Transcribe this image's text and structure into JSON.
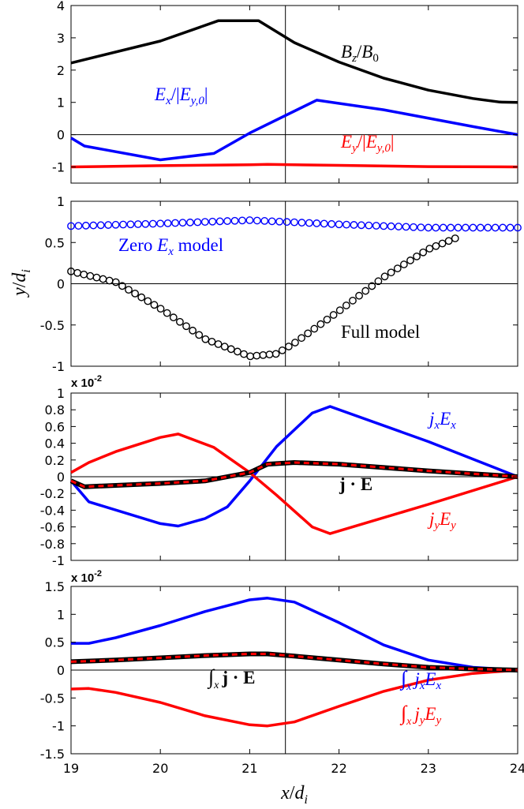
{
  "chart_data": [
    {
      "type": "line",
      "panel": "a",
      "xlim": [
        19,
        24
      ],
      "ylim": [
        -1.5,
        4
      ],
      "yticks": [
        4,
        3,
        2,
        1,
        0,
        -1
      ],
      "ytick_labels": [
        "4",
        "3",
        "2",
        "1",
        "0",
        "-1"
      ],
      "grid": false,
      "series": [
        {
          "name": "Bz/B0",
          "color": "#000000",
          "x": [
            19,
            20.0,
            20.65,
            21.1,
            21.5,
            22.0,
            22.5,
            23.0,
            23.5,
            23.8,
            24.0
          ],
          "y": [
            2.22,
            2.9,
            3.53,
            3.53,
            2.85,
            2.25,
            1.75,
            1.38,
            1.12,
            1.01,
            1.0
          ]
        },
        {
          "name": "Ex/|Ey,0|",
          "color": "#0000ff",
          "x": [
            19,
            19.15,
            20.0,
            20.6,
            21.0,
            21.75,
            22.5,
            23.5,
            24.0
          ],
          "y": [
            -0.1,
            -0.35,
            -0.78,
            -0.58,
            0.05,
            1.07,
            0.77,
            0.25,
            0.0
          ]
        },
        {
          "name": "Ey/|Ey,0|",
          "color": "#ff0000",
          "x": [
            19,
            20.0,
            21.0,
            21.2,
            22.0,
            23.0,
            24.0
          ],
          "y": [
            -1.0,
            -0.96,
            -0.93,
            -0.92,
            -0.95,
            -0.99,
            -1.0
          ]
        }
      ],
      "annotations": [
        {
          "id": "bz",
          "color": "#000000",
          "base": "B",
          "sub": "z",
          "div": "/",
          "base2": "B",
          "sub2": "0"
        },
        {
          "id": "ex",
          "color": "#0000ff",
          "base": "E",
          "sub": "x",
          "rest": "/|",
          "base2": "E",
          "sub2": "y,0",
          "tail": "|"
        },
        {
          "id": "ey",
          "color": "#ff0000",
          "base": "E",
          "sub": "y",
          "rest": "/|",
          "base2": "E",
          "sub2": "y,0",
          "tail": "|"
        }
      ]
    },
    {
      "type": "scatter",
      "panel": "b",
      "xlim": [
        19,
        24
      ],
      "ylim": [
        -1,
        1
      ],
      "yticks": [
        1,
        0.5,
        0,
        -0.5,
        -1
      ],
      "ytick_labels": [
        "1",
        "0.5",
        "0",
        "-0.5",
        "-1"
      ],
      "ylabel": {
        "base": "y",
        "div": "/",
        "base2": "d",
        "sub2": "i"
      },
      "grid": false,
      "series": [
        {
          "name": "Zero Ex model",
          "color": "#0000ff",
          "x": [
            19,
            20.0,
            21.0,
            22.0,
            23.0,
            24.0
          ],
          "y": [
            0.7,
            0.73,
            0.77,
            0.72,
            0.68,
            0.68
          ]
        },
        {
          "name": "Full model",
          "color": "#000000",
          "x": [
            19,
            19.5,
            20.0,
            20.5,
            21.0,
            21.3,
            21.5,
            22.0,
            22.5,
            23.0,
            23.3
          ],
          "y": [
            0.15,
            0.02,
            -0.3,
            -0.67,
            -0.88,
            -0.85,
            -0.72,
            -0.33,
            0.08,
            0.42,
            0.55
          ]
        }
      ],
      "annotations": [
        {
          "id": "zero",
          "color": "#0000ff",
          "pre": "Zero ",
          "base": "E",
          "sub": "x",
          "post": " model"
        },
        {
          "id": "full",
          "color": "#000000",
          "text": "Full model"
        }
      ]
    },
    {
      "type": "line",
      "panel": "c",
      "xlim": [
        19,
        24
      ],
      "ylim": [
        -1,
        1
      ],
      "multiplier": "x 10",
      "multiplier_exp": "-2",
      "yticks": [
        1,
        0.8,
        0.6,
        0.4,
        0.2,
        0,
        -0.2,
        -0.4,
        -0.6,
        -0.8,
        -1
      ],
      "ytick_labels": [
        "1",
        "0.8",
        "0.6",
        "0.4",
        "0.2",
        "0",
        "-0.2",
        "-0.4",
        "-0.6",
        "-0.8",
        "-1"
      ],
      "grid": false,
      "series": [
        {
          "name": "jxEx",
          "color": "#0000ff",
          "x": [
            19,
            19.2,
            20.0,
            20.2,
            20.5,
            20.75,
            21.0,
            21.3,
            21.7,
            21.9,
            23.0,
            24.0
          ],
          "y": [
            -0.05,
            -0.3,
            -0.56,
            -0.59,
            -0.5,
            -0.36,
            -0.05,
            0.36,
            0.76,
            0.84,
            0.42,
            0.0
          ]
        },
        {
          "name": "jyEy",
          "color": "#ff0000",
          "x": [
            19,
            19.2,
            19.5,
            20.0,
            20.2,
            20.6,
            21.0,
            21.3,
            21.7,
            21.9,
            23.0,
            24.0
          ],
          "y": [
            0.05,
            0.17,
            0.3,
            0.47,
            0.51,
            0.35,
            0.05,
            -0.22,
            -0.6,
            -0.68,
            -0.33,
            0.0
          ]
        },
        {
          "name": "j·E (full)",
          "color": "#000000",
          "x": [
            19,
            19.15,
            20.0,
            20.5,
            21.0,
            21.2,
            21.5,
            22.0,
            23.0,
            24.0
          ],
          "y": [
            -0.05,
            -0.12,
            -0.08,
            -0.05,
            0.05,
            0.15,
            0.17,
            0.15,
            0.07,
            0.0
          ]
        },
        {
          "name": "j·E (sum)",
          "color": "#ff0000",
          "dashed": true,
          "x": [
            19,
            19.15,
            20.0,
            20.5,
            21.0,
            21.2,
            21.5,
            22.0,
            23.0,
            24.0
          ],
          "y": [
            -0.05,
            -0.12,
            -0.08,
            -0.05,
            0.05,
            0.15,
            0.17,
            0.15,
            0.07,
            0.0
          ]
        }
      ],
      "annotations": [
        {
          "id": "jxex",
          "color": "#0000ff",
          "base": "j",
          "sub": "x",
          "base2": "E",
          "sub2": "x"
        },
        {
          "id": "jyey",
          "color": "#ff0000",
          "base": "j",
          "sub": "y",
          "base2": "E",
          "sub2": "y"
        },
        {
          "id": "jdote",
          "color": "#000000",
          "text": "j · E"
        }
      ]
    },
    {
      "type": "line",
      "panel": "d",
      "xlim": [
        19,
        24
      ],
      "ylim": [
        -1.5,
        1.5
      ],
      "multiplier": "x 10",
      "multiplier_exp": "-2",
      "xticks": [
        19,
        20,
        21,
        22,
        23,
        24
      ],
      "xtick_labels": [
        "19",
        "20",
        "21",
        "22",
        "23",
        "24"
      ],
      "xlabel": {
        "base": "x",
        "div": "/",
        "base2": "d",
        "sub2": "i"
      },
      "yticks": [
        1.5,
        1,
        0.5,
        0,
        -0.5,
        -1,
        -1.5
      ],
      "ytick_labels": [
        "1.5",
        "1",
        "0.5",
        "0",
        "-0.5",
        "-1",
        "-1.5"
      ],
      "grid": false,
      "series": [
        {
          "name": "int jxEx",
          "color": "#0000ff",
          "x": [
            19,
            19.2,
            19.5,
            20.0,
            20.5,
            21.0,
            21.2,
            21.5,
            22.0,
            22.5,
            23.0,
            23.5,
            24.0
          ],
          "y": [
            0.48,
            0.48,
            0.58,
            0.8,
            1.05,
            1.26,
            1.29,
            1.22,
            0.85,
            0.45,
            0.18,
            0.05,
            0.0
          ]
        },
        {
          "name": "int jyEy",
          "color": "#ff0000",
          "x": [
            19,
            19.2,
            19.5,
            20.0,
            20.5,
            21.0,
            21.2,
            21.5,
            22.0,
            22.5,
            23.0,
            23.5,
            24.0
          ],
          "y": [
            -0.34,
            -0.33,
            -0.4,
            -0.58,
            -0.82,
            -0.98,
            -1.0,
            -0.93,
            -0.65,
            -0.38,
            -0.18,
            -0.06,
            0.0
          ]
        },
        {
          "name": "int j·E (full)",
          "color": "#000000",
          "x": [
            19,
            19.5,
            20.0,
            20.5,
            21.0,
            21.2,
            21.5,
            22.0,
            22.5,
            23.0,
            23.5,
            24.0
          ],
          "y": [
            0.15,
            0.18,
            0.22,
            0.26,
            0.29,
            0.29,
            0.25,
            0.18,
            0.11,
            0.05,
            0.02,
            0.0
          ]
        },
        {
          "name": "int j·E (sum)",
          "color": "#ff0000",
          "dashed": true,
          "x": [
            19,
            19.5,
            20.0,
            20.5,
            21.0,
            21.2,
            21.5,
            22.0,
            22.5,
            23.0,
            23.5,
            24.0
          ],
          "y": [
            0.15,
            0.18,
            0.22,
            0.26,
            0.29,
            0.29,
            0.25,
            0.18,
            0.11,
            0.05,
            0.02,
            0.0
          ]
        }
      ],
      "annotations": [
        {
          "id": "ijxex",
          "color": "#0000ff",
          "int": "∫",
          "intsub": "x",
          "base": "j",
          "sub": "x",
          "base2": "E",
          "sub2": "x"
        },
        {
          "id": "ijyey",
          "color": "#ff0000",
          "int": "∫",
          "intsub": "x",
          "base": "j",
          "sub": "y",
          "base2": "E",
          "sub2": "y"
        },
        {
          "id": "ijdote",
          "color": "#000000",
          "int": "∫",
          "intsub": "x",
          "text": "j · E"
        }
      ]
    }
  ],
  "vline_x": 21.4
}
